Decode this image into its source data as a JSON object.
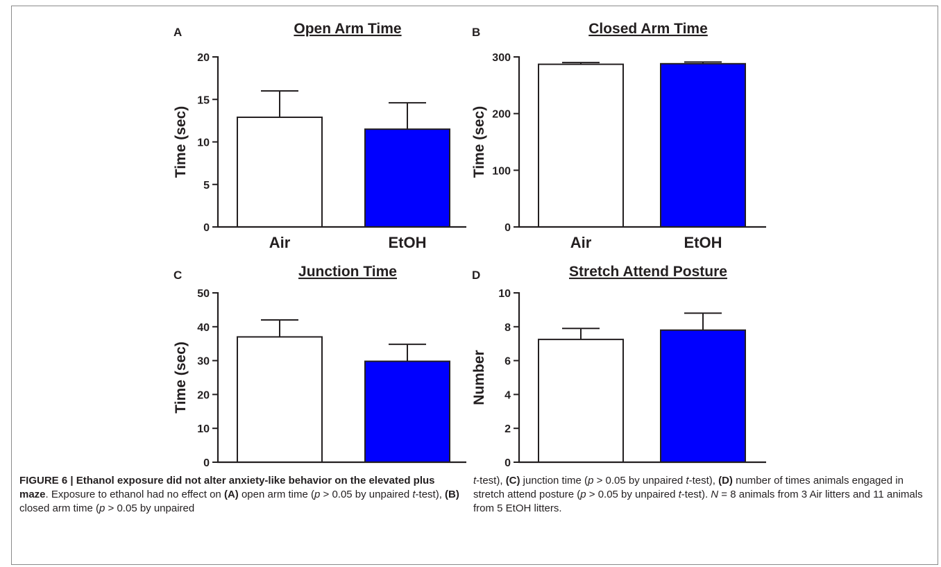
{
  "chart_data": [
    {
      "type": "bar",
      "panel_label": "A",
      "title": "Open Arm Time",
      "xlabel": "",
      "ylabel": "Time (sec)",
      "categories": [
        "Air",
        "EtOH"
      ],
      "values": [
        12.9,
        11.5
      ],
      "error": [
        3.1,
        3.1
      ],
      "colors": [
        "#ffffff",
        "#0000ff"
      ],
      "ylim": [
        0,
        20
      ],
      "yticks": [
        0,
        5,
        10,
        15,
        20
      ],
      "yticklabels": [
        "0",
        "5",
        "10",
        "15",
        "20"
      ],
      "grid": false
    },
    {
      "type": "bar",
      "panel_label": "B",
      "title": "Closed Arm Time",
      "xlabel": "",
      "ylabel": "Time (sec)",
      "categories": [
        "Air",
        "EtOH"
      ],
      "values": [
        287,
        288
      ],
      "error": [
        3,
        3
      ],
      "colors": [
        "#ffffff",
        "#0000ff"
      ],
      "ylim": [
        0,
        300
      ],
      "yticks": [
        0,
        100,
        200,
        300
      ],
      "yticklabels": [
        "0",
        "100",
        "200",
        "300"
      ],
      "grid": false
    },
    {
      "type": "bar",
      "panel_label": "C",
      "title": "Junction Time",
      "xlabel": "",
      "ylabel": "Time (sec)",
      "categories": [
        "Air",
        "EtOH"
      ],
      "values": [
        37,
        29.8
      ],
      "error": [
        5,
        5
      ],
      "colors": [
        "#ffffff",
        "#0000ff"
      ],
      "ylim": [
        0,
        50
      ],
      "yticks": [
        0,
        10,
        20,
        30,
        40,
        50
      ],
      "yticklabels": [
        "0",
        "10",
        "20",
        "30",
        "40",
        "50"
      ],
      "grid": false
    },
    {
      "type": "bar",
      "panel_label": "D",
      "title": "Stretch Attend Posture",
      "xlabel": "",
      "ylabel": "Number",
      "categories": [
        "Air",
        "EtOH"
      ],
      "values": [
        7.25,
        7.8
      ],
      "error": [
        0.65,
        1.0
      ],
      "colors": [
        "#ffffff",
        "#0000ff"
      ],
      "ylim": [
        0,
        10
      ],
      "yticks": [
        0,
        2,
        4,
        6,
        8,
        10
      ],
      "yticklabels": [
        "0",
        "2",
        "4",
        "6",
        "8",
        "10"
      ],
      "grid": false
    }
  ],
  "caption": {
    "figure_label": "FIGURE 6 | Ethanol exposure did not alter anxiety-like behavior on the elevated plus maze",
    "after_label": ". Exposure to ethanol had no effect on ",
    "tag_a": "(A)",
    "text_a": " open arm time (",
    "p_var": "p",
    "p_rel": " > 0.05 by unpaired ",
    "t_var": "t",
    "t_rest": "-test), ",
    "tag_b": "(B)",
    "text_b": " closed arm time (",
    "p_rel_b": " > 0.05 by unpaired",
    "right_start": "-test), ",
    "tag_c": "(C)",
    "text_c": " junction time (",
    "tag_d": "(D)",
    "text_d": " number of times animals engaged in stretch attend posture (",
    "t_rest_d": "-test). ",
    "n_var": "N",
    "n_text": " = 8 animals from 3 Air litters and 11 animals from 5 EtOH litters."
  }
}
